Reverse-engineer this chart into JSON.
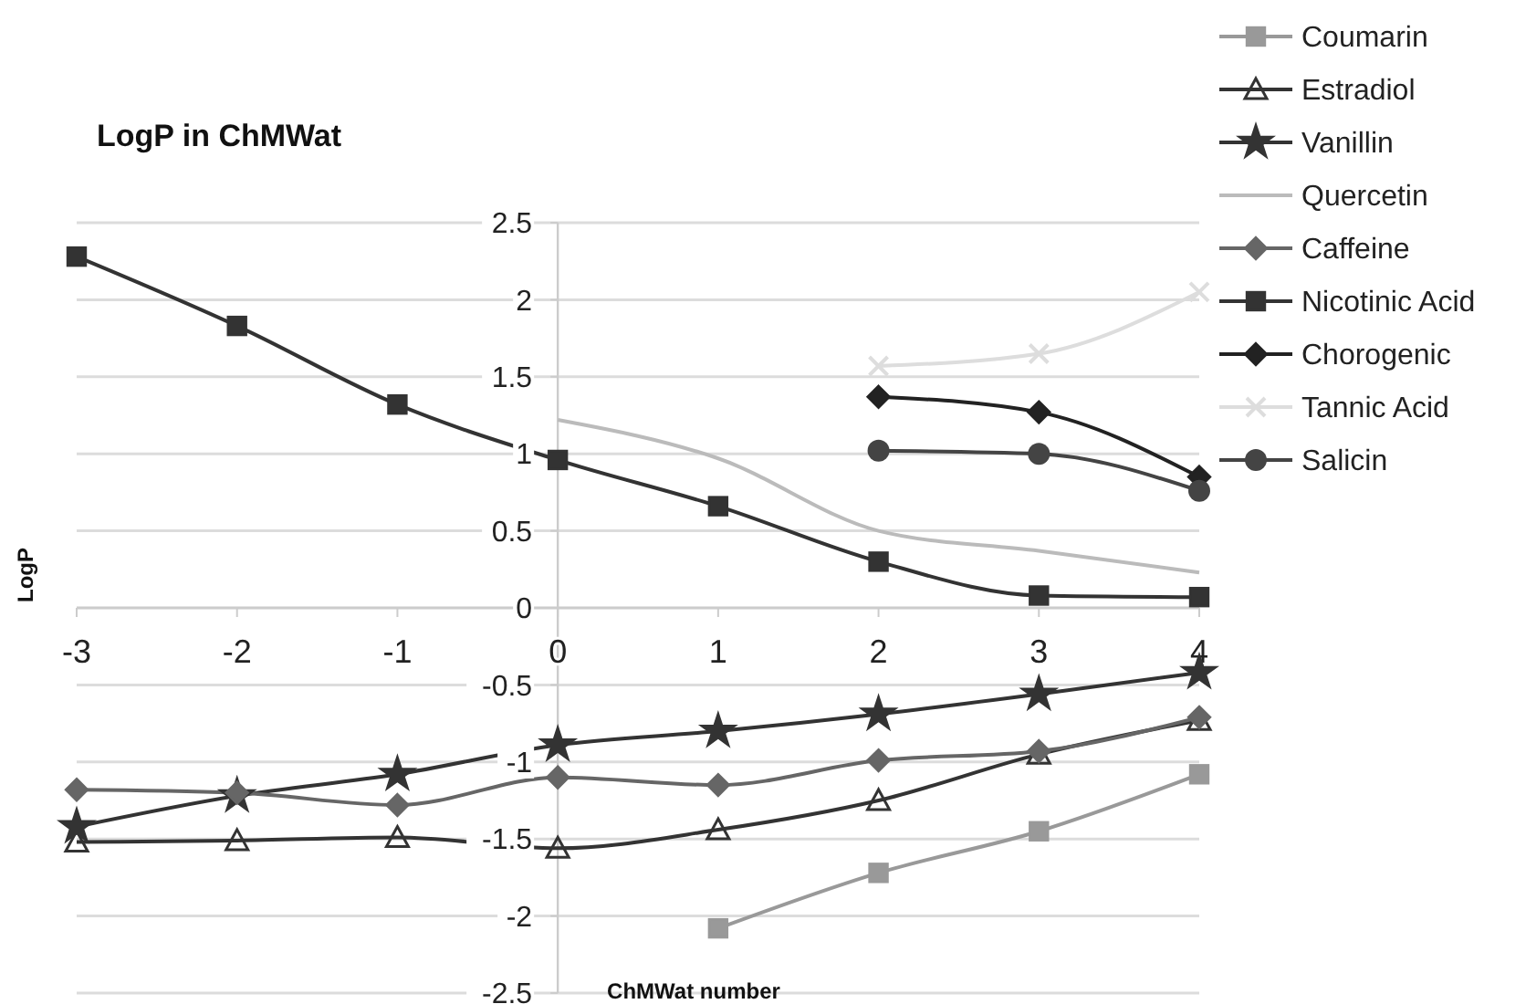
{
  "chart_data": {
    "type": "line",
    "title": "LogP in ChMWat",
    "xlabel": "ChMWat number",
    "ylabel": "LogP",
    "x": [
      -3,
      -2,
      -1,
      0,
      1,
      2,
      3,
      4
    ],
    "xlim": [
      -3,
      4
    ],
    "xticks": [
      -3,
      -2,
      -1,
      0,
      1,
      2,
      3,
      4
    ],
    "ylim": [
      -2.5,
      2.5
    ],
    "yticks": [
      -2.5,
      -2,
      -1.5,
      -1,
      -0.5,
      0,
      0.5,
      1,
      1.5,
      2,
      2.5
    ],
    "grid": "y",
    "legend": "right",
    "series": [
      {
        "name": "Coumarin",
        "color": "#999999",
        "marker": "square",
        "values": [
          null,
          null,
          null,
          null,
          -2.08,
          -1.72,
          -1.45,
          -1.08
        ]
      },
      {
        "name": "Estradiol",
        "color": "#333333",
        "marker": "triangle",
        "values": [
          -1.52,
          -1.51,
          -1.49,
          -1.56,
          -1.44,
          -1.25,
          -0.95,
          -0.73
        ]
      },
      {
        "name": "Vanillin",
        "color": "#333333",
        "marker": "star",
        "values": [
          -1.42,
          -1.22,
          -1.08,
          -0.89,
          -0.8,
          -0.69,
          -0.56,
          -0.42
        ]
      },
      {
        "name": "Quercetin",
        "color": "#bbbbbb",
        "marker": "none",
        "values": [
          null,
          null,
          null,
          1.22,
          0.97,
          0.5,
          0.37,
          0.23
        ]
      },
      {
        "name": "Caffeine",
        "color": "#666666",
        "marker": "diamond",
        "values": [
          -1.18,
          -1.2,
          -1.28,
          -1.1,
          -1.15,
          -0.99,
          -0.93,
          -0.71
        ]
      },
      {
        "name": "Nicotinic Acid",
        "color": "#333333",
        "marker": "square",
        "values": [
          2.28,
          1.83,
          1.32,
          0.96,
          0.66,
          0.3,
          0.08,
          0.07
        ]
      },
      {
        "name": "Chorogenic",
        "color": "#222222",
        "marker": "diamond",
        "values": [
          null,
          null,
          null,
          null,
          null,
          1.37,
          1.27,
          0.85
        ]
      },
      {
        "name": "Tannic Acid",
        "color": "#dddddd",
        "marker": "cross",
        "values": [
          null,
          null,
          null,
          null,
          null,
          1.57,
          1.65,
          2.05
        ]
      },
      {
        "name": "Salicin",
        "color": "#444444",
        "marker": "circle",
        "values": [
          null,
          null,
          null,
          null,
          null,
          1.02,
          1.0,
          0.76
        ]
      }
    ]
  }
}
